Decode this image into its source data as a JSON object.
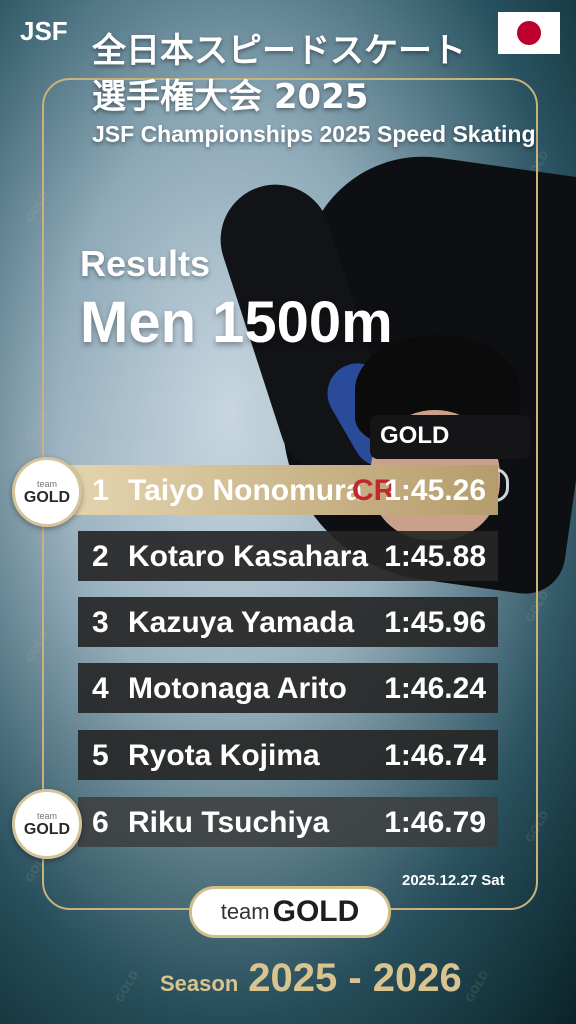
{
  "header": {
    "org": "JSF",
    "title_jp": "全日本スピードスケート\n選手権大会 2025",
    "title_en": "JSF Championships 2025 Speed Skating",
    "flag_icon": "japan-flag-icon"
  },
  "event": {
    "results_label": "Results",
    "name": "Men 1500m"
  },
  "athlete": {
    "headband_text": "GOLD"
  },
  "results": [
    {
      "rank": "1",
      "name": "Taiyo Nonomura",
      "record": "CR",
      "time": "1:45.26"
    },
    {
      "rank": "2",
      "name": "Kotaro Kasahara",
      "record": "",
      "time": "1:45.88"
    },
    {
      "rank": "3",
      "name": "Kazuya Yamada",
      "record": "",
      "time": "1:45.96"
    },
    {
      "rank": "4",
      "name": "Motonaga Arito",
      "record": "",
      "time": "1:46.24"
    },
    {
      "rank": "5",
      "name": "Ryota Kojima",
      "record": "",
      "time": "1:46.74"
    },
    {
      "rank": "6",
      "name": "Riku Tsuchiya",
      "record": "",
      "time": "1:46.79"
    }
  ],
  "badge": {
    "team": "team",
    "gold": "GOLD"
  },
  "footer": {
    "date": "2025.12.27 Sat",
    "logo_team": "team",
    "logo_gold": "GOLD",
    "season_label": "Season",
    "season_years": "2025 - 2026"
  },
  "colors": {
    "accent_gold": "#c9b27c",
    "record_red": "#c0282d",
    "row_dark": "#262626"
  }
}
